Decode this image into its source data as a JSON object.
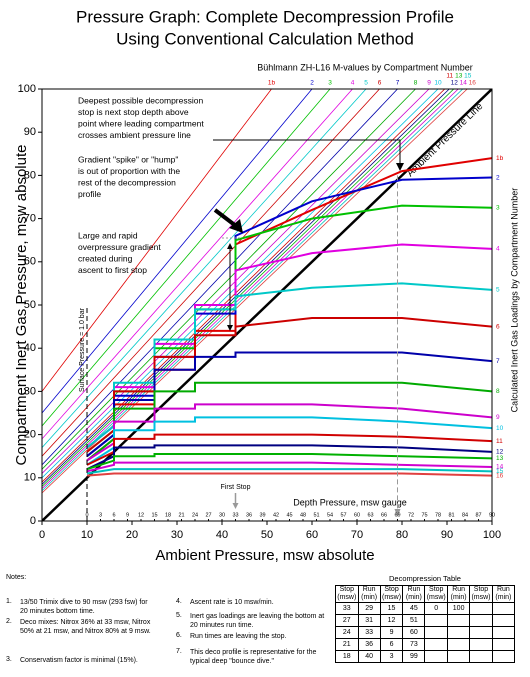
{
  "chart_data": {
    "type": "line",
    "title": [
      "Pressure Graph:  Complete Decompression Profile",
      "Using Conventional Calculation Method"
    ],
    "xlabel": "Ambient Pressure, msw absolute",
    "ylabel": "Compartment Inert Gas Pressure, msw absolute",
    "y2label": "Calculated Inert Gas Loadings by Compartment Number",
    "x2label": "Depth Pressure, msw gauge",
    "m_value_title": "Bühlmann ZH-L16 M-values by Compartment Number",
    "ambient_line_label": "Ambient Pressure Line",
    "xlim": [
      0,
      100
    ],
    "ylim": [
      0,
      100
    ],
    "xticks": [
      0,
      10,
      20,
      30,
      40,
      50,
      60,
      70,
      80,
      90,
      100
    ],
    "yticks": [
      0,
      10,
      20,
      30,
      40,
      50,
      60,
      70,
      80,
      90,
      100
    ],
    "x2lim": [
      -10,
      90
    ],
    "x2ticks": [
      0,
      3,
      6,
      9,
      12,
      15,
      18,
      21,
      24,
      27,
      30,
      33,
      36,
      39,
      42,
      45,
      48,
      51,
      54,
      57,
      60,
      63,
      66,
      69,
      72,
      75,
      78,
      81,
      84,
      87,
      90
    ],
    "first_stop": {
      "label": "First Stop",
      "depth": 33
    },
    "crossing_depth": 69,
    "surface_line": {
      "label": "Surface Pressure = 1.0 bar",
      "x": 10
    },
    "annotations": [
      [
        "Deepest possible decompression",
        "stop is next stop depth above",
        "point where leading compartment",
        "crosses ambient pressure line"
      ],
      [
        "Gradient \"spike\" or \"hump\"",
        "is out of proportion with the",
        "rest of the decompression",
        "profile"
      ],
      [
        "Large and rapid",
        "overpressure gradient",
        "created during",
        "ascent to first stop"
      ]
    ],
    "m_value_lines": [
      {
        "name": "1b",
        "color": "#e00000",
        "y_at_0": 30,
        "x_at_100": 51
      },
      {
        "name": "2",
        "color": "#0000cc",
        "y_at_0": 25,
        "x_at_100": 60
      },
      {
        "name": "3",
        "color": "#00c000",
        "y_at_0": 22,
        "x_at_100": 64
      },
      {
        "name": "4",
        "color": "#e000e0",
        "y_at_0": 19,
        "x_at_100": 69
      },
      {
        "name": "5",
        "color": "#00c8c8",
        "y_at_0": 17,
        "x_at_100": 72
      },
      {
        "name": "6",
        "color": "#cc0000",
        "y_at_0": 15,
        "x_at_100": 75
      },
      {
        "name": "7",
        "color": "#0000aa",
        "y_at_0": 13,
        "x_at_100": 79
      },
      {
        "name": "8",
        "color": "#00aa00",
        "y_at_0": 12,
        "x_at_100": 83
      },
      {
        "name": "9",
        "color": "#cc00cc",
        "y_at_0": 11,
        "x_at_100": 86
      },
      {
        "name": "10",
        "color": "#00c0e0",
        "y_at_0": 10,
        "x_at_100": 88
      },
      {
        "name": "11",
        "color": "#d00000",
        "y_at_0": 9,
        "x_at_100": 89.5
      },
      {
        "name": "12",
        "color": "#000080",
        "y_at_0": 8.5,
        "x_at_100": 90.5
      },
      {
        "name": "13",
        "color": "#00b000",
        "y_at_0": 8,
        "x_at_100": 91.5
      },
      {
        "name": "14",
        "color": "#d000d0",
        "y_at_0": 7.5,
        "x_at_100": 92.5
      },
      {
        "name": "15",
        "color": "#00c0c0",
        "y_at_0": 7,
        "x_at_100": 93.5
      },
      {
        "name": "16",
        "color": "#e04040",
        "y_at_0": 6.5,
        "x_at_100": 94.5
      }
    ],
    "x": [
      100,
      80,
      60,
      43,
      43,
      34,
      34,
      25,
      25,
      16,
      16,
      10
    ],
    "series": [
      {
        "name": "1b",
        "color": "#e00000",
        "values": [
          84,
          81,
          72,
          64,
          44,
          44,
          35,
          35,
          27,
          27,
          19,
          14
        ]
      },
      {
        "name": "2",
        "color": "#0000cc",
        "values": [
          79.5,
          79,
          74,
          66,
          48,
          48,
          38,
          38,
          29,
          29,
          20,
          15
        ]
      },
      {
        "name": "3",
        "color": "#00c000",
        "values": [
          72.5,
          73,
          70,
          65,
          49,
          49,
          40,
          40,
          30,
          30,
          21,
          16
        ]
      },
      {
        "name": "4",
        "color": "#e000e0",
        "values": [
          63,
          64,
          62,
          58,
          50,
          50,
          41,
          41,
          31,
          31,
          22,
          17
        ]
      },
      {
        "name": "5",
        "color": "#00c8c8",
        "values": [
          53.5,
          55,
          54,
          52,
          49,
          49,
          42,
          42,
          32,
          32,
          22,
          17
        ]
      },
      {
        "name": "6",
        "color": "#cc0000",
        "values": [
          45,
          47,
          47,
          45,
          43,
          43,
          38,
          38,
          30,
          30,
          21,
          16
        ]
      },
      {
        "name": "7",
        "color": "#0000aa",
        "values": [
          37,
          39,
          39,
          39,
          38,
          38,
          35,
          35,
          28,
          28,
          20,
          15
        ]
      },
      {
        "name": "8",
        "color": "#00aa00",
        "values": [
          30,
          32,
          32,
          32,
          32,
          32,
          30,
          30,
          26,
          26,
          19,
          14
        ]
      },
      {
        "name": "9",
        "color": "#cc00cc",
        "values": [
          24,
          26,
          27,
          27,
          27,
          27,
          26,
          26,
          23,
          23,
          18,
          14
        ]
      },
      {
        "name": "10",
        "color": "#00c0e0",
        "values": [
          21.5,
          23,
          24,
          24,
          24,
          24,
          23,
          23,
          21,
          21,
          17,
          13
        ]
      },
      {
        "name": "11",
        "color": "#d00000",
        "values": [
          18.5,
          19.5,
          20,
          20,
          20,
          20,
          20,
          20,
          19,
          19,
          16,
          13
        ]
      },
      {
        "name": "12",
        "color": "#000080",
        "values": [
          16,
          17,
          17.5,
          17.5,
          17.5,
          17.5,
          17.5,
          17.5,
          17,
          17,
          15,
          12
        ]
      },
      {
        "name": "13",
        "color": "#00b000",
        "values": [
          14.5,
          15,
          15.5,
          15.5,
          15.5,
          15.5,
          15.5,
          15.5,
          15,
          15,
          14,
          12
        ]
      },
      {
        "name": "14",
        "color": "#d000d0",
        "values": [
          12.5,
          13,
          13.5,
          13.5,
          13.5,
          13.5,
          13.5,
          13.5,
          13.5,
          13.5,
          13,
          11.5
        ]
      },
      {
        "name": "15",
        "color": "#00c0c0",
        "values": [
          11.5,
          12,
          12,
          12,
          12,
          12,
          12,
          12,
          12,
          12,
          12,
          11
        ]
      },
      {
        "name": "16",
        "color": "#e04040",
        "values": [
          10.5,
          11,
          11,
          11,
          11,
          11,
          11,
          11,
          11,
          11,
          11,
          10.5
        ]
      }
    ]
  },
  "notes": {
    "title": "Notes:",
    "items": [
      {
        "num": "1.",
        "text": "13/50 Trimix dive to 90 msw (293 fsw) for 20 minutes bottom time."
      },
      {
        "num": "2.",
        "text": "Deco mixes:  Nitrox 36% at 33 msw, Nitrox 50% at 21 msw, and Nitrox 80% at 9 msw."
      },
      {
        "num": "3.",
        "text": "Conservatism factor is minimal (15%)."
      },
      {
        "num": "4.",
        "text": "Ascent rate is 10 msw/min."
      },
      {
        "num": "5.",
        "text": "Inert gas loadings are leaving the bottom at 20 minutes run time."
      },
      {
        "num": "6.",
        "text": "Run times are leaving the stop."
      },
      {
        "num": "7.",
        "text": "This deco profile is representative for the typical deep \"bounce dive.\""
      }
    ]
  },
  "deco_table": {
    "title": "Decompression Table",
    "headers": [
      "Stop (msw)",
      "Run (min)"
    ],
    "rows": [
      [
        33,
        29,
        15,
        45,
        0,
        100
      ],
      [
        27,
        31,
        12,
        51
      ],
      [
        24,
        33,
        9,
        60
      ],
      [
        21,
        36,
        6,
        73
      ],
      [
        18,
        40,
        3,
        99
      ]
    ]
  }
}
